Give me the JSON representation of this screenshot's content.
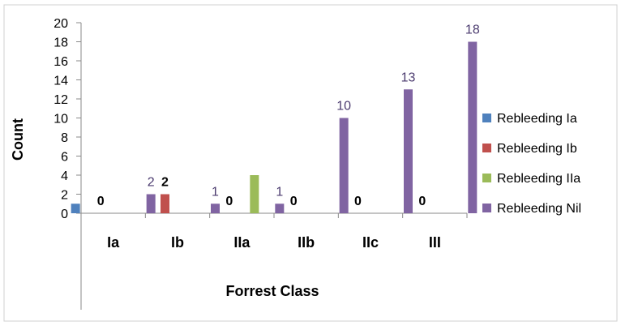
{
  "chart_data": {
    "type": "bar",
    "title": "",
    "xlabel": "Forrest Class",
    "ylabel": "Count",
    "ylim": [
      0,
      20
    ],
    "yticks": [
      0,
      2,
      4,
      6,
      8,
      10,
      12,
      14,
      16,
      18,
      20
    ],
    "categories": [
      "Ia",
      "Ib",
      "IIa",
      "IIb",
      "IIc",
      "III"
    ],
    "series": [
      {
        "name": "Rebleeding Ia",
        "color": "#4F81BD",
        "values": [
          1,
          0,
          0,
          0,
          0,
          0
        ]
      },
      {
        "name": "Rebleeding Ib",
        "color": "#C0504D",
        "values": [
          0,
          2,
          0,
          0,
          0,
          0
        ]
      },
      {
        "name": "Rebleeding IIa",
        "color": "#9BBB59",
        "values": [
          0,
          0,
          4,
          0,
          0,
          0
        ]
      },
      {
        "name": "Rebleeding Nil",
        "color": "#8064A2",
        "values": [
          2,
          1,
          1,
          10,
          13,
          18
        ]
      }
    ],
    "data_labels": [
      {
        "text": "0",
        "category": "Ia",
        "series": "Rebleeding Ib",
        "bold": true,
        "color": "#000000"
      },
      {
        "text": "2",
        "category": "Ia",
        "series": "Rebleeding Nil",
        "bold": false,
        "color": "#4A3A6E"
      },
      {
        "text": "2",
        "category": "Ib",
        "series": "Rebleeding Ib",
        "bold": true,
        "color": "#000000"
      },
      {
        "text": "1",
        "category": "Ib",
        "series": "Rebleeding Nil",
        "bold": false,
        "color": "#4A3A6E"
      },
      {
        "text": "0",
        "category": "IIa",
        "series": "Rebleeding Ib",
        "bold": true,
        "color": "#000000"
      },
      {
        "text": "1",
        "category": "IIa",
        "series": "Rebleeding Nil",
        "bold": false,
        "color": "#4A3A6E"
      },
      {
        "text": "0",
        "category": "IIb",
        "series": "Rebleeding Ib",
        "bold": true,
        "color": "#000000"
      },
      {
        "text": "10",
        "category": "IIb",
        "series": "Rebleeding Nil",
        "bold": false,
        "color": "#4A3A6E"
      },
      {
        "text": "0",
        "category": "IIc",
        "series": "Rebleeding Ib",
        "bold": true,
        "color": "#000000"
      },
      {
        "text": "13",
        "category": "IIc",
        "series": "Rebleeding Nil",
        "bold": false,
        "color": "#4A3A6E"
      },
      {
        "text": "0",
        "category": "III",
        "series": "Rebleeding Ib",
        "bold": true,
        "color": "#000000"
      },
      {
        "text": "18",
        "category": "III",
        "series": "Rebleeding Nil",
        "bold": false,
        "color": "#4A3A6E"
      }
    ],
    "legend_position": "right",
    "grid": false
  }
}
